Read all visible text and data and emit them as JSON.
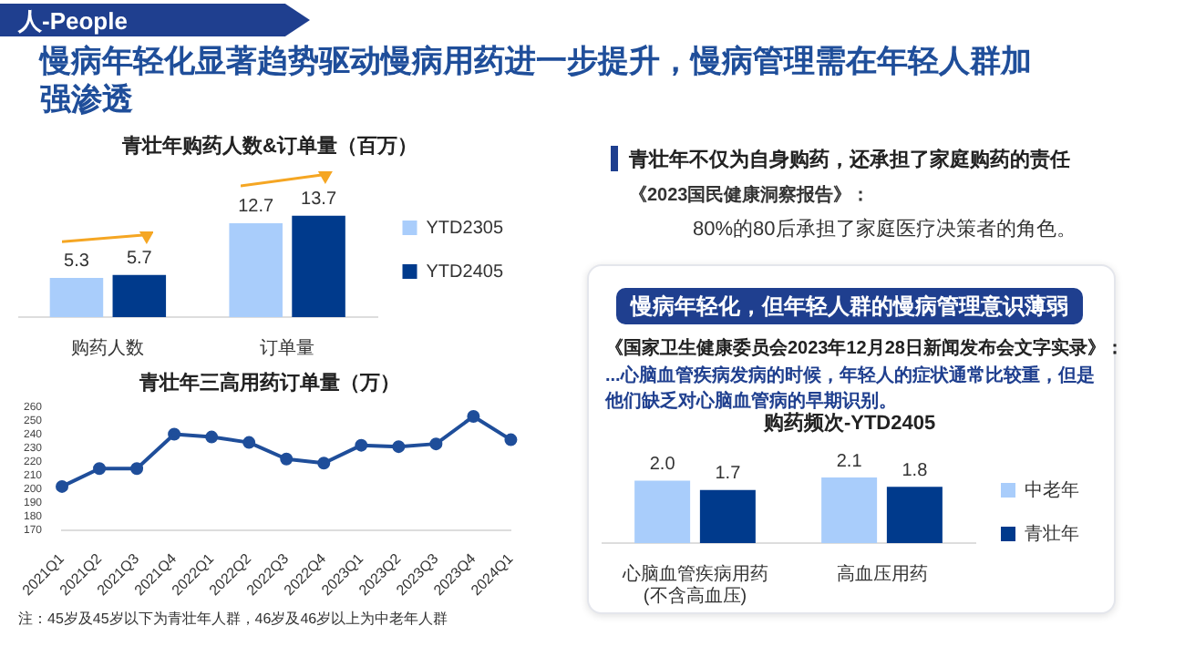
{
  "chart_data": [
    {
      "type": "other",
      "title": "慢病年轻化显著趋势驱动慢病用药进一步提升，慢病管理需在年轻人群加强渗透",
      "annotations": [
        "人-People",
        "青壮年不仅为自身购药，还承担了家庭购药的责任",
        "《2023国民健康洞察报告》：",
        "80%的80后承担了家庭医疗决策者的角色。",
        "慢病年轻化，但年轻人群的慢病管理意识薄弱",
        "《国家卫生健康委员会2023年12月28日新闻发布会文字实录》：",
        "...心脑血管疾病发病的时候，年轻人的症状通常比较重，但是他们缺乏对心脑血管病的早期识别。"
      ]
    },
    {
      "type": "bar",
      "title": "青壮年购药人数&订单量（百万）",
      "categories": [
        "购药人数",
        "订单量"
      ],
      "legend": "right",
      "series": [
        {
          "name": "YTD2305",
          "color": "#a9cdfb",
          "values": [
            5.3,
            12.7
          ],
          "value_labels": [
            "5.3",
            "12.7"
          ]
        },
        {
          "name": "YTD2405",
          "color": "#003a8c",
          "values": [
            5.7,
            13.7
          ],
          "value_labels": [
            "5.7",
            "13.7"
          ]
        }
      ]
    },
    {
      "type": "line",
      "title": "青壮年三高用药订单量（万）",
      "categories": [
        "2021Q1",
        "2021Q2",
        "2021Q3",
        "2021Q4",
        "2022Q1",
        "2022Q2",
        "2022Q3",
        "2022Q4",
        "2023Q1",
        "2023Q2",
        "2023Q3",
        "2023Q4",
        "2024Q1"
      ],
      "ylim": [
        170,
        260
      ],
      "yticks": [
        170,
        180,
        190,
        200,
        210,
        220,
        230,
        240,
        250,
        260
      ],
      "grid": false,
      "marker": "circle",
      "line_style": "solid",
      "series": [
        {
          "color": "#1f4e9a",
          "values": [
            202,
            215,
            215,
            240,
            238,
            234,
            222,
            219,
            232,
            231,
            233,
            253,
            236
          ]
        }
      ],
      "annotations": [
        "注：45岁及45岁以下为青壮年人群，46岁及46岁以上为中老年人群"
      ]
    },
    {
      "type": "bar",
      "title": "购药频次-YTD2405",
      "categories": [
        "心脑血管疾病用药(不含高血压)",
        "高血压用药"
      ],
      "legend": "right",
      "series": [
        {
          "name": "中老年",
          "color": "#a9cdfb",
          "values": [
            2.0,
            2.1
          ],
          "value_labels": [
            "2.0",
            "2.1"
          ]
        },
        {
          "name": "青壮年",
          "color": "#003a8c",
          "values": [
            1.7,
            1.8
          ],
          "value_labels": [
            "1.7",
            "1.8"
          ]
        }
      ]
    }
  ]
}
